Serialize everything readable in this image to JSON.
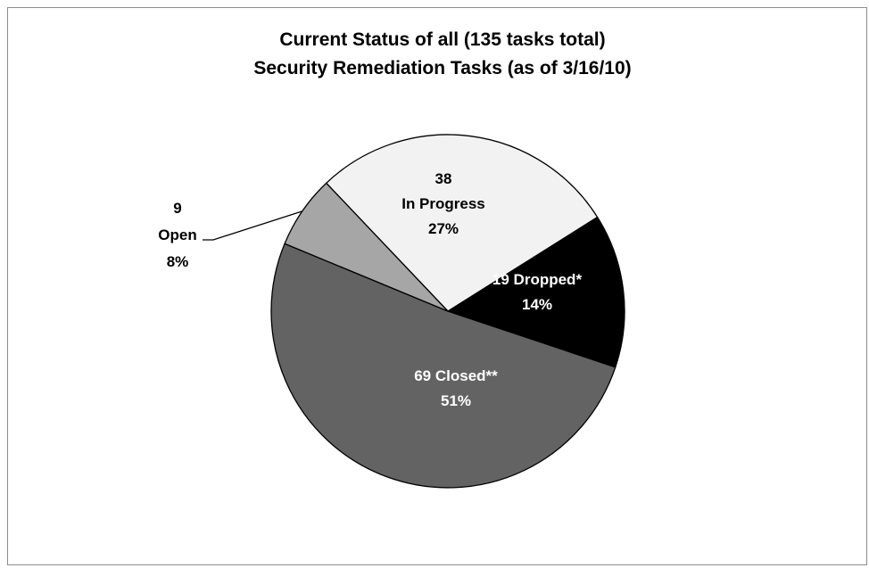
{
  "chart_data": {
    "type": "pie",
    "title_lines": [
      "Current Status of all (135 tasks total)",
      "Security Remediation Tasks (as of 3/16/10)"
    ],
    "total": 135,
    "slices": [
      {
        "name": "In Progress",
        "value": 38,
        "percent": "27%",
        "color": "#f2f2f2",
        "label_color": "#000000",
        "label_lines": [
          "38",
          "In Progress",
          "27%"
        ]
      },
      {
        "name": "Dropped*",
        "value": 19,
        "percent": "14%",
        "color": "#000000",
        "label_color": "#ffffff",
        "label_lines": [
          "19 Dropped*",
          "14%"
        ]
      },
      {
        "name": "Closed**",
        "value": 69,
        "percent": "51%",
        "color": "#636363",
        "label_color": "#ffffff",
        "label_lines": [
          "69 Closed**",
          "51%"
        ]
      },
      {
        "name": "Open",
        "value": 9,
        "percent": "8%",
        "color": "#a6a6a6",
        "label_color": "#000000",
        "label_lines": [
          "9",
          "Open",
          "8%"
        ]
      }
    ],
    "legend": "none"
  }
}
